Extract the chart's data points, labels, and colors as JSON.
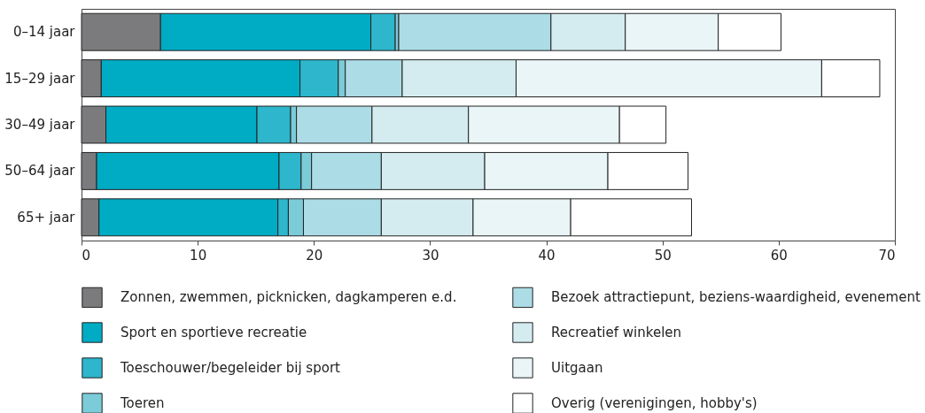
{
  "chart_data": {
    "type": "bar",
    "orientation": "horizontal",
    "stacked": true,
    "categories": [
      "0–14 jaar",
      "15–29 jaar",
      "30–49 jaar",
      "50–64 jaar",
      "65+ jaar"
    ],
    "xlim": [
      0,
      70
    ],
    "xticks": [
      0,
      10,
      20,
      30,
      40,
      50,
      60,
      70
    ],
    "grid": false,
    "legend": "bottom",
    "series": [
      {
        "name": "Zonnen, zwemmen, picknicken, dagkamperen e.d.",
        "color": "#7b7b7d",
        "values": [
          6.8,
          1.7,
          2.1,
          1.3,
          1.5
        ]
      },
      {
        "name": "Sport en sportieve recreatie",
        "color": "#00abc4",
        "values": [
          18.1,
          17.1,
          13.0,
          15.7,
          15.4
        ]
      },
      {
        "name": "Toeschouwer/begeleider bij sport",
        "color": "#2db6cc",
        "values": [
          2.1,
          3.3,
          2.9,
          1.9,
          0.9
        ]
      },
      {
        "name": "Toeren",
        "color": "#7ccbd8",
        "values": [
          0.3,
          0.6,
          0.5,
          0.9,
          1.3
        ]
      },
      {
        "name": "Bezoek attractiepunt, beziens-waardigheid, evenement",
        "color": "#acdce6",
        "values": [
          13.1,
          4.9,
          6.5,
          6.0,
          6.7
        ]
      },
      {
        "name": "Recreatief winkelen",
        "color": "#d4ecf0",
        "values": [
          6.4,
          9.8,
          8.3,
          8.9,
          7.9
        ]
      },
      {
        "name": "Uitgaan",
        "color": "#e9f5f7",
        "values": [
          8.0,
          26.3,
          13.0,
          10.6,
          8.4
        ]
      },
      {
        "name": "Overig (verenigingen, hobby's)",
        "color": "#ffffff",
        "values": [
          5.4,
          5.0,
          4.0,
          6.9,
          10.4
        ]
      }
    ]
  }
}
